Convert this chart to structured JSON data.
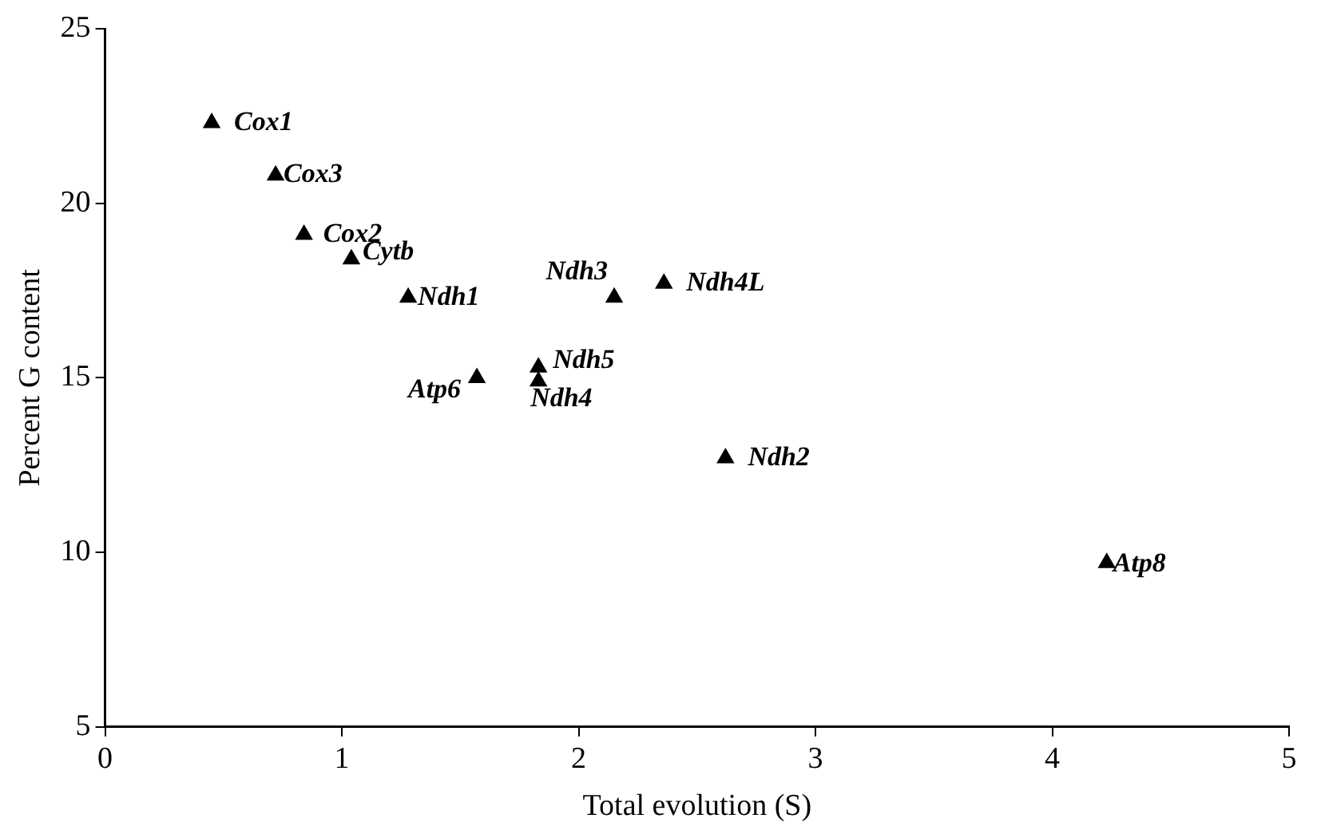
{
  "chart_data": {
    "type": "scatter",
    "xlabel": "Total evolution (S)",
    "ylabel": "Percent G content",
    "x": [
      0.45,
      0.72,
      0.84,
      1.04,
      1.28,
      1.57,
      1.83,
      1.83,
      2.15,
      2.36,
      2.62,
      4.23
    ],
    "series": [
      {
        "color": "#000000",
        "values": [
          22.3,
          20.8,
          19.1,
          18.4,
          17.3,
          15.0,
          15.3,
          14.9,
          17.3,
          17.7,
          12.7,
          9.7
        ]
      }
    ],
    "annotations": [
      {
        "text": "Cox1",
        "x": 0.45,
        "y": 22.3
      },
      {
        "text": "Cox3",
        "x": 0.72,
        "y": 20.8
      },
      {
        "text": "Cox2",
        "x": 0.84,
        "y": 19.1
      },
      {
        "text": "Cytb",
        "x": 1.04,
        "y": 18.4
      },
      {
        "text": "Ndh1",
        "x": 1.28,
        "y": 17.3
      },
      {
        "text": "Atp6",
        "x": 1.57,
        "y": 15.0
      },
      {
        "text": "Ndh5",
        "x": 1.83,
        "y": 15.3
      },
      {
        "text": "Ndh4",
        "x": 1.83,
        "y": 14.9
      },
      {
        "text": "Ndh3",
        "x": 2.15,
        "y": 17.3
      },
      {
        "text": "Ndh4L",
        "x": 2.36,
        "y": 17.7
      },
      {
        "text": "Ndh2",
        "x": 2.62,
        "y": 12.7
      },
      {
        "text": "Atp8",
        "x": 4.23,
        "y": 9.7
      }
    ],
    "xlim": [
      0,
      5
    ],
    "xticks": [
      0,
      1,
      2,
      3,
      4,
      5
    ],
    "ylim": [
      5,
      25
    ],
    "yticks": [
      5,
      10,
      15,
      20,
      25
    ],
    "grid": false,
    "legend": false,
    "marker": "triangle"
  }
}
